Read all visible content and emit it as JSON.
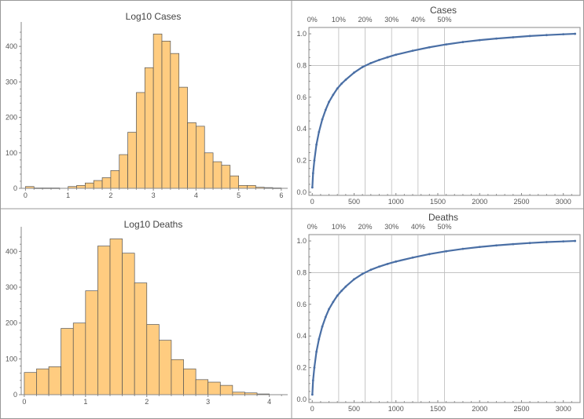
{
  "chart_data": [
    {
      "type": "bar",
      "title": "Log10 Cases",
      "xlim": [
        -0.1,
        6.15
      ],
      "ylim": [
        0,
        460
      ],
      "bin_width": 0.2,
      "x_ticks": [
        "0",
        "1",
        "2",
        "3",
        "4",
        "5",
        "6"
      ],
      "y_ticks": [
        "0",
        "100",
        "200",
        "300",
        "400"
      ],
      "bins": [
        {
          "x0": 0.0,
          "value": 5
        },
        {
          "x0": 0.2,
          "value": 1
        },
        {
          "x0": 0.4,
          "value": 1
        },
        {
          "x0": 0.6,
          "value": 1
        },
        {
          "x0": 0.8,
          "value": 0
        },
        {
          "x0": 1.0,
          "value": 5
        },
        {
          "x0": 1.2,
          "value": 8
        },
        {
          "x0": 1.4,
          "value": 15
        },
        {
          "x0": 1.6,
          "value": 22
        },
        {
          "x0": 1.8,
          "value": 30
        },
        {
          "x0": 2.0,
          "value": 50
        },
        {
          "x0": 2.2,
          "value": 95
        },
        {
          "x0": 2.4,
          "value": 158
        },
        {
          "x0": 2.6,
          "value": 270
        },
        {
          "x0": 2.8,
          "value": 340
        },
        {
          "x0": 3.0,
          "value": 435
        },
        {
          "x0": 3.2,
          "value": 415
        },
        {
          "x0": 3.4,
          "value": 380
        },
        {
          "x0": 3.6,
          "value": 285
        },
        {
          "x0": 3.8,
          "value": 185
        },
        {
          "x0": 4.0,
          "value": 175
        },
        {
          "x0": 4.2,
          "value": 100
        },
        {
          "x0": 4.4,
          "value": 75
        },
        {
          "x0": 4.6,
          "value": 65
        },
        {
          "x0": 4.8,
          "value": 35
        },
        {
          "x0": 5.0,
          "value": 8
        },
        {
          "x0": 5.2,
          "value": 8
        },
        {
          "x0": 5.4,
          "value": 3
        },
        {
          "x0": 5.6,
          "value": 2
        },
        {
          "x0": 5.8,
          "value": 1
        }
      ]
    },
    {
      "type": "scatter",
      "title": "Cases",
      "xlim": [
        -40,
        3200
      ],
      "ylim": [
        -0.02,
        1.04
      ],
      "x_ticks": [
        "0",
        "500",
        "1000",
        "1500",
        "2000",
        "2500",
        "3000"
      ],
      "y_ticks": [
        "0.0",
        "0.2",
        "0.4",
        "0.6",
        "0.8",
        "1.0"
      ],
      "y_gridline": 0.8,
      "percent_ticks": [
        {
          "label": "0%",
          "x": 0
        },
        {
          "label": "10%",
          "x": 316
        },
        {
          "label": "20%",
          "x": 632
        },
        {
          "label": "30%",
          "x": 948
        },
        {
          "label": "40%",
          "x": 1264
        },
        {
          "label": "50%",
          "x": 1580
        }
      ],
      "points": [
        [
          1,
          0.03
        ],
        [
          10,
          0.12
        ],
        [
          25,
          0.2
        ],
        [
          50,
          0.3
        ],
        [
          80,
          0.38
        ],
        [
          120,
          0.46
        ],
        [
          160,
          0.52
        ],
        [
          200,
          0.57
        ],
        [
          250,
          0.615
        ],
        [
          300,
          0.655
        ],
        [
          350,
          0.685
        ],
        [
          400,
          0.71
        ],
        [
          500,
          0.755
        ],
        [
          600,
          0.79
        ],
        [
          700,
          0.815
        ],
        [
          800,
          0.835
        ],
        [
          900,
          0.852
        ],
        [
          1000,
          0.868
        ],
        [
          1200,
          0.893
        ],
        [
          1400,
          0.915
        ],
        [
          1600,
          0.933
        ],
        [
          1800,
          0.948
        ],
        [
          2000,
          0.96
        ],
        [
          2200,
          0.97
        ],
        [
          2400,
          0.978
        ],
        [
          2600,
          0.986
        ],
        [
          2800,
          0.992
        ],
        [
          3000,
          0.997
        ],
        [
          3140,
          1.0
        ]
      ]
    },
    {
      "type": "bar",
      "title": "Log10 Deaths",
      "xlim": [
        -0.05,
        4.3
      ],
      "ylim": [
        0,
        460
      ],
      "bin_width": 0.2,
      "x_ticks": [
        "0",
        "1",
        "2",
        "3",
        "4"
      ],
      "y_ticks": [
        "0",
        "100",
        "200",
        "300",
        "400"
      ],
      "bins": [
        {
          "x0": 0.0,
          "value": 62
        },
        {
          "x0": 0.2,
          "value": 72
        },
        {
          "x0": 0.4,
          "value": 78
        },
        {
          "x0": 0.6,
          "value": 185
        },
        {
          "x0": 0.8,
          "value": 200
        },
        {
          "x0": 1.0,
          "value": 290
        },
        {
          "x0": 1.2,
          "value": 415
        },
        {
          "x0": 1.4,
          "value": 435
        },
        {
          "x0": 1.6,
          "value": 395
        },
        {
          "x0": 1.8,
          "value": 312
        },
        {
          "x0": 2.0,
          "value": 196
        },
        {
          "x0": 2.2,
          "value": 152
        },
        {
          "x0": 2.4,
          "value": 98
        },
        {
          "x0": 2.6,
          "value": 72
        },
        {
          "x0": 2.8,
          "value": 42
        },
        {
          "x0": 3.0,
          "value": 35
        },
        {
          "x0": 3.2,
          "value": 26
        },
        {
          "x0": 3.4,
          "value": 7
        },
        {
          "x0": 3.6,
          "value": 5
        },
        {
          "x0": 3.8,
          "value": 2
        }
      ]
    },
    {
      "type": "scatter",
      "title": "Deaths",
      "xlim": [
        -40,
        3200
      ],
      "ylim": [
        -0.02,
        1.04
      ],
      "x_ticks": [
        "0",
        "500",
        "1000",
        "1500",
        "2000",
        "2500",
        "3000"
      ],
      "y_ticks": [
        "0.0",
        "0.2",
        "0.4",
        "0.6",
        "0.8",
        "1.0"
      ],
      "y_gridline": 0.8,
      "percent_ticks": [
        {
          "label": "0%",
          "x": 0
        },
        {
          "label": "10%",
          "x": 316
        },
        {
          "label": "20%",
          "x": 632
        },
        {
          "label": "30%",
          "x": 948
        },
        {
          "label": "40%",
          "x": 1264
        },
        {
          "label": "50%",
          "x": 1580
        }
      ],
      "points": [
        [
          1,
          0.03
        ],
        [
          10,
          0.12
        ],
        [
          25,
          0.2
        ],
        [
          50,
          0.3
        ],
        [
          80,
          0.38
        ],
        [
          120,
          0.46
        ],
        [
          160,
          0.52
        ],
        [
          200,
          0.57
        ],
        [
          250,
          0.615
        ],
        [
          300,
          0.655
        ],
        [
          350,
          0.685
        ],
        [
          400,
          0.712
        ],
        [
          500,
          0.758
        ],
        [
          600,
          0.792
        ],
        [
          700,
          0.818
        ],
        [
          800,
          0.838
        ],
        [
          900,
          0.855
        ],
        [
          1000,
          0.87
        ],
        [
          1200,
          0.895
        ],
        [
          1400,
          0.917
        ],
        [
          1600,
          0.935
        ],
        [
          1800,
          0.95
        ],
        [
          2000,
          0.962
        ],
        [
          2200,
          0.972
        ],
        [
          2400,
          0.98
        ],
        [
          2600,
          0.987
        ],
        [
          2800,
          0.993
        ],
        [
          3000,
          0.997
        ],
        [
          3140,
          1.0
        ]
      ]
    }
  ],
  "colors": {
    "bar_fill": "#FFCC80",
    "bar_stroke": "#555555",
    "point_color": "#4A6FA5",
    "grid_color": "#BBBBBB",
    "frame_color": "#888888",
    "text_color": "#444444",
    "divider_color": "#999999"
  }
}
